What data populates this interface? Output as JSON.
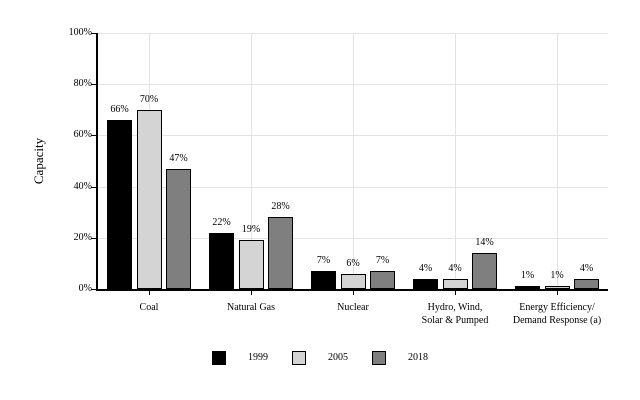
{
  "chart_data": {
    "type": "bar",
    "title": "",
    "ylabel": "Capacity",
    "xlabel": "",
    "ylim": [
      0,
      100
    ],
    "yticks": [
      0,
      20,
      40,
      60,
      80,
      100
    ],
    "ytick_labels": [
      "0%",
      "20%",
      "40%",
      "60%",
      "80%",
      "100%"
    ],
    "categories": [
      "Coal",
      "Natural Gas",
      "Nuclear",
      "Hydro, Wind,\nSolar & Pumped",
      "Energy Efficiency/\nDemand Response (a)"
    ],
    "series": [
      {
        "name": "1999",
        "color": "#000000",
        "values": [
          66,
          22,
          7,
          4,
          1
        ]
      },
      {
        "name": "2005",
        "color": "#d4d4d4",
        "values": [
          70,
          19,
          6,
          4,
          1
        ]
      },
      {
        "name": "2018",
        "color": "#7f7f7f",
        "values": [
          47,
          28,
          7,
          14,
          4
        ]
      }
    ],
    "data_labels": [
      [
        "66%",
        "22%",
        "7%",
        "4%",
        "1%"
      ],
      [
        "70%",
        "19%",
        "6%",
        "4%",
        "1%"
      ],
      [
        "47%",
        "28%",
        "7%",
        "14%",
        "4%"
      ]
    ],
    "grid": true,
    "gridline_color": "#e3e3e3",
    "axis_color": "#000000",
    "background": "#ffffff",
    "legend_position": "bottom"
  }
}
